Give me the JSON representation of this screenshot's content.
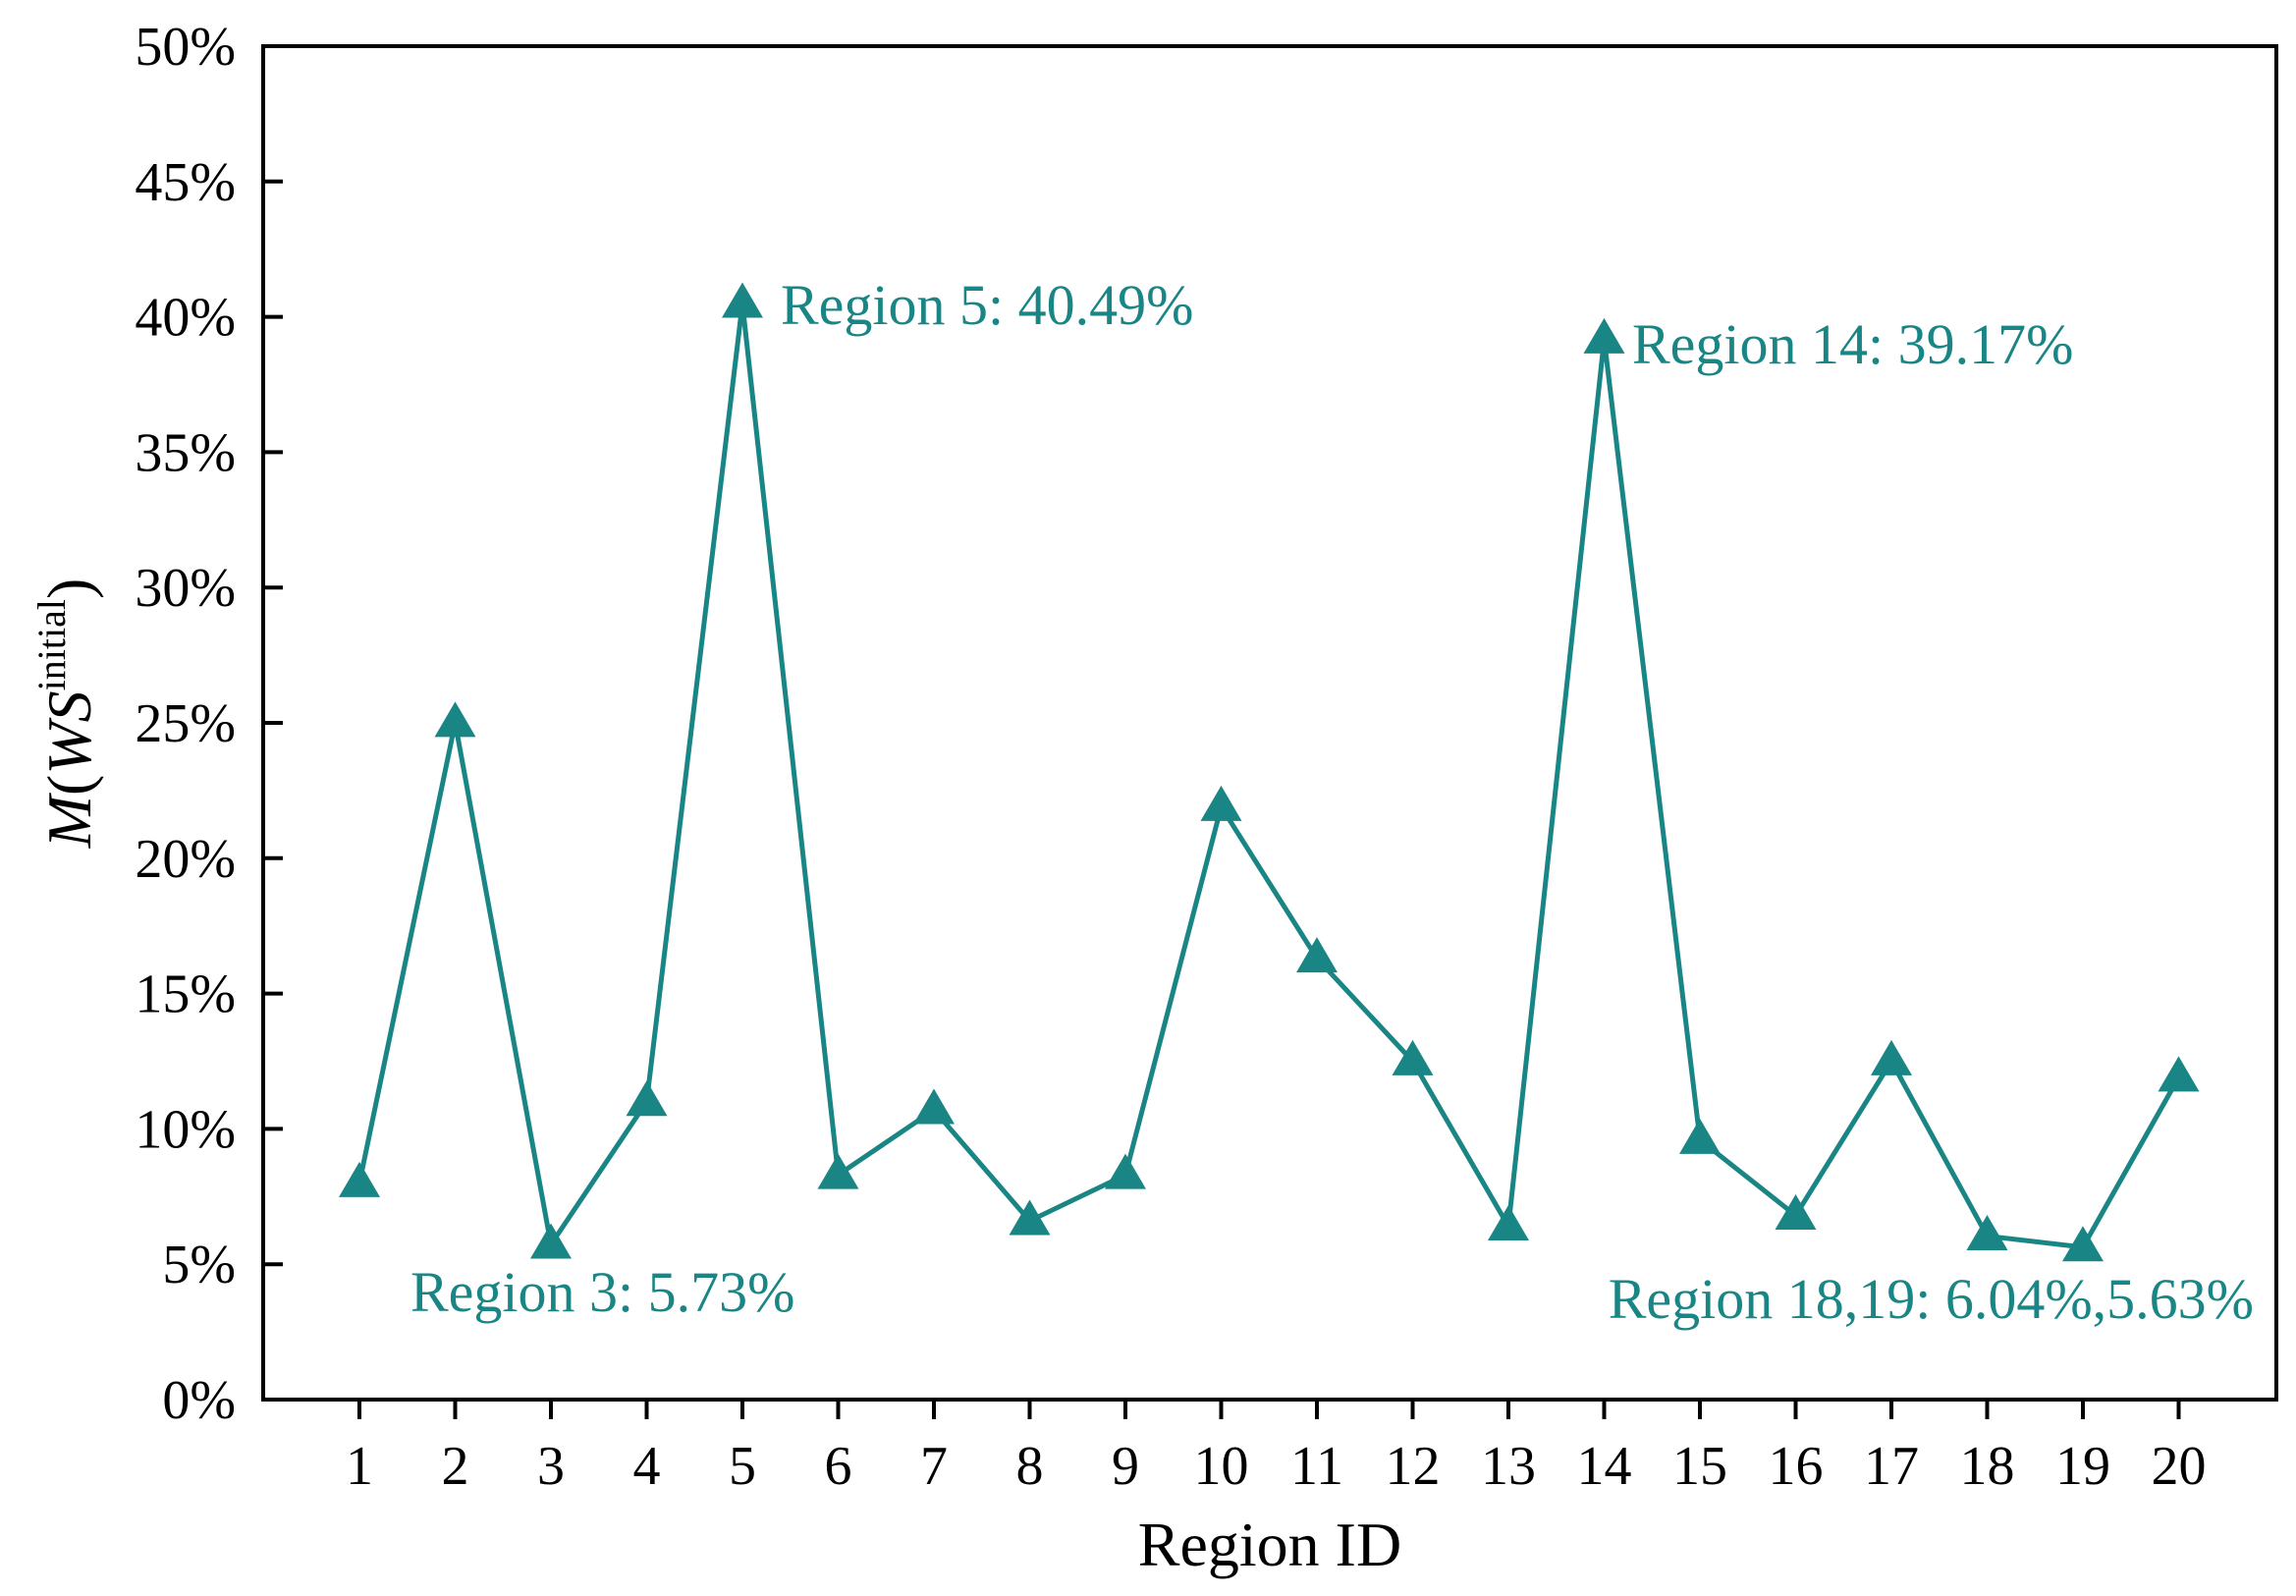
{
  "chart_data": {
    "type": "line",
    "title": "",
    "xlabel": "Region ID",
    "ylabel": {
      "prefix": "M",
      "paren_open": "(",
      "var": "WS",
      "superscript": "initial",
      "paren_close": ")"
    },
    "ylim": [
      0,
      50
    ],
    "y_ticks": [
      0,
      5,
      10,
      15,
      20,
      25,
      30,
      35,
      40,
      45,
      50
    ],
    "y_tick_labels": [
      "0%",
      "5%",
      "10%",
      "15%",
      "20%",
      "25%",
      "30%",
      "35%",
      "40%",
      "45%",
      "50%"
    ],
    "categories": [
      "1",
      "2",
      "3",
      "4",
      "5",
      "6",
      "7",
      "8",
      "9",
      "10",
      "11",
      "12",
      "13",
      "14",
      "15",
      "16",
      "17",
      "18",
      "19",
      "20"
    ],
    "series": [
      {
        "name": "M(WS initial)",
        "color": "#1a8585",
        "marker": "triangle-up",
        "values": [
          8.0,
          25.0,
          5.73,
          11.0,
          40.49,
          8.3,
          10.7,
          6.6,
          8.3,
          21.9,
          16.3,
          12.5,
          6.4,
          39.17,
          9.6,
          6.8,
          12.5,
          6.04,
          5.63,
          11.9
        ]
      }
    ],
    "annotations": [
      {
        "text": "Region 5: 40.49%",
        "region": "5"
      },
      {
        "text": "Region 14: 39.17%",
        "region": "14"
      },
      {
        "text": "Region 3: 5.73%",
        "region": "3"
      },
      {
        "text": "Region 18,19: 6.04%,5.63%",
        "region": "18,19"
      }
    ],
    "grid": false,
    "legend": "none"
  }
}
